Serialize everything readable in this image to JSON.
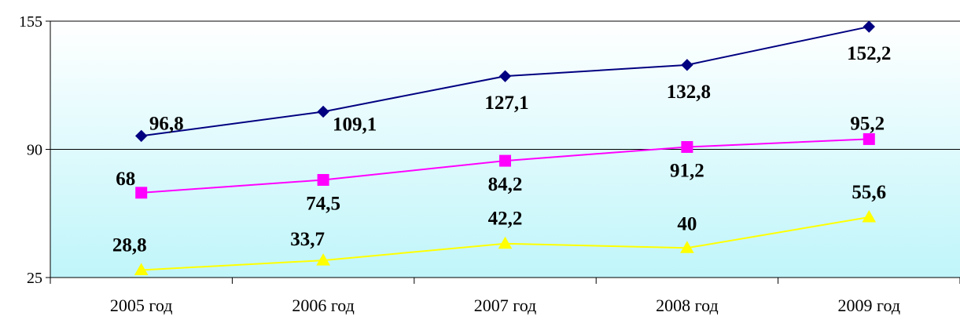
{
  "chart_data": {
    "type": "line",
    "categories": [
      "2005 год",
      "2006 год",
      "2007 год",
      "2008 год",
      "2009 год"
    ],
    "ylim": [
      25,
      155
    ],
    "yticks": [
      "155",
      "90",
      "25"
    ],
    "legend": "none",
    "series": [
      {
        "values": [
          96.8,
          109.1,
          127.1,
          132.8,
          152.2
        ],
        "labels": [
          "96,8",
          "109,1",
          "127,1",
          "132,8",
          "152,2"
        ],
        "color": "#000080",
        "marker": "diamond"
      },
      {
        "values": [
          68,
          74.5,
          84.2,
          91.2,
          95.2
        ],
        "labels": [
          "68",
          "74,5",
          "84,2",
          "91,2",
          "95,2"
        ],
        "color": "#FF00FF",
        "marker": "square"
      },
      {
        "values": [
          28.8,
          33.7,
          42.2,
          40,
          55.6
        ],
        "labels": [
          "28,8",
          "33,7",
          "42,2",
          "40",
          "55,6"
        ],
        "color": "#FFFF00",
        "marker": "triangle"
      }
    ]
  },
  "colors": {
    "plot_bg_top": "#FFFFFF",
    "plot_bg_bottom": "#BFF5FA",
    "axis": "#000000"
  }
}
